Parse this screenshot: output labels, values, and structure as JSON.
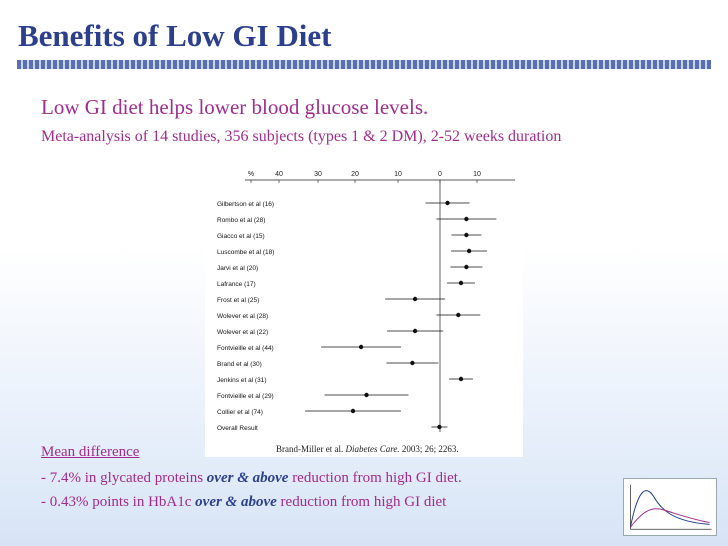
{
  "slide": {
    "title": "Benefits of Low GI Diet",
    "subtitle": "Low GI diet helps lower blood glucose levels.",
    "detail": "Meta-analysis of 14 studies, 356 subjects (types 1 & 2 DM), 2-52 weeks duration"
  },
  "figure": {
    "axis_ticks": [
      "%",
      "40",
      "30",
      "20",
      "10",
      "0",
      "10"
    ],
    "studies": [
      {
        "label": "Gilbertson et al (16)",
        "point": 0.75
      },
      {
        "label": "Rombo et al (28)",
        "point": 0.82
      },
      {
        "label": "Giacco et al (15)",
        "point": 0.82
      },
      {
        "label": "Luscombe et al (18)",
        "point": 0.83
      },
      {
        "label": "Jarvi et al (20)",
        "point": 0.82
      },
      {
        "label": "Lafrance (17)",
        "point": 0.8
      },
      {
        "label": "Frost et al (25)",
        "point": 0.63
      },
      {
        "label": "Wolever et al (28)",
        "point": 0.79
      },
      {
        "label": "Wolever et al (22)",
        "point": 0.63
      },
      {
        "label": "Fontvieille et al (44)",
        "point": 0.43
      },
      {
        "label": "Brand et al (30)",
        "point": 0.62
      },
      {
        "label": "Jenkins et al (31)",
        "point": 0.8
      },
      {
        "label": "Fontvieille et al (29)",
        "point": 0.45
      },
      {
        "label": "Collier et al (74)",
        "point": 0.4
      },
      {
        "label": "Overall Result",
        "point": 0.72
      }
    ],
    "citation_authors": "Brand-Miller et al.",
    "citation_journal": "Diabetes Care.",
    "citation_ref": "2003; 26; 2263."
  },
  "results": {
    "mean_difference_label": "Mean difference",
    "line1_pre": "- 7.4% in glycated proteins ",
    "line1_emph": "over & above",
    "line1_post": " reduction from high GI diet.",
    "line2_pre": "- 0.43% points in HbA1c ",
    "line2_emph": "over & above",
    "line2_post": " reduction from high GI diet"
  },
  "colors": {
    "title": "#2b3f8c",
    "accent": "#a02c8c"
  }
}
